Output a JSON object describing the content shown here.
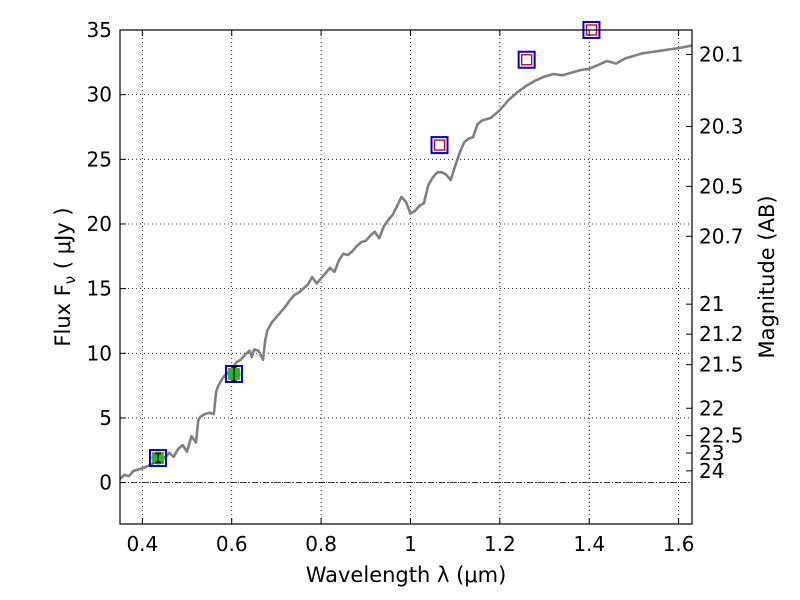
{
  "chart_data": {
    "type": "line",
    "xlabel": "Wavelength  λ (μm)",
    "ylabel": "Flux  F",
    "ylabel_subscript": "ν",
    "ylabel_unit": " ( μJy )",
    "ylabel_right": "Magnitude (AB)",
    "xlim": [
      0.35,
      1.63
    ],
    "ylim": [
      -3.2,
      35
    ],
    "grid": true,
    "x_ticks": [
      {
        "v": 0.4,
        "label": "0.4"
      },
      {
        "v": 0.6,
        "label": "0.6"
      },
      {
        "v": 0.8,
        "label": "0.8"
      },
      {
        "v": 1.0,
        "label": "1"
      },
      {
        "v": 1.2,
        "label": "1.2"
      },
      {
        "v": 1.4,
        "label": "1.4"
      },
      {
        "v": 1.6,
        "label": "1.6"
      }
    ],
    "y_ticks": [
      {
        "v": 0,
        "label": "0"
      },
      {
        "v": 5,
        "label": "5"
      },
      {
        "v": 10,
        "label": "10"
      },
      {
        "v": 15,
        "label": "15"
      },
      {
        "v": 20,
        "label": "20"
      },
      {
        "v": 25,
        "label": "25"
      },
      {
        "v": 30,
        "label": "30"
      },
      {
        "v": 35,
        "label": "35"
      }
    ],
    "magnitude_ticks": [
      {
        "flux": 33.11,
        "label": "20.1"
      },
      {
        "flux": 27.54,
        "label": "20.3"
      },
      {
        "flux": 22.91,
        "label": "20.5"
      },
      {
        "flux": 19.05,
        "label": "20.7"
      },
      {
        "flux": 13.8,
        "label": "21"
      },
      {
        "flux": 11.48,
        "label": "21.2"
      },
      {
        "flux": 9.12,
        "label": "21.5"
      },
      {
        "flux": 5.75,
        "label": "22"
      },
      {
        "flux": 3.63,
        "label": "22.5"
      },
      {
        "flux": 2.29,
        "label": "23"
      },
      {
        "flux": 0.91,
        "label": "24"
      }
    ],
    "zero_line": 0,
    "colors": {
      "model": "#808080",
      "square_outer": "#0000cc",
      "square_inner": "#cc0033",
      "detection": "#22bb22"
    },
    "model_spectrum": {
      "name": "",
      "x": [
        0.35,
        0.36,
        0.37,
        0.38,
        0.4,
        0.42,
        0.44,
        0.45,
        0.46,
        0.47,
        0.48,
        0.49,
        0.5,
        0.505,
        0.51,
        0.52,
        0.525,
        0.53,
        0.54,
        0.55,
        0.56,
        0.565,
        0.57,
        0.58,
        0.59,
        0.6,
        0.61,
        0.62,
        0.63,
        0.64,
        0.645,
        0.65,
        0.66,
        0.67,
        0.675,
        0.68,
        0.69,
        0.7,
        0.71,
        0.72,
        0.73,
        0.74,
        0.75,
        0.76,
        0.77,
        0.78,
        0.79,
        0.8,
        0.81,
        0.82,
        0.83,
        0.84,
        0.85,
        0.86,
        0.87,
        0.88,
        0.89,
        0.9,
        0.91,
        0.92,
        0.93,
        0.94,
        0.95,
        0.96,
        0.97,
        0.98,
        0.99,
        1.0,
        1.01,
        1.02,
        1.03,
        1.04,
        1.05,
        1.06,
        1.07,
        1.08,
        1.09,
        1.1,
        1.11,
        1.12,
        1.13,
        1.14,
        1.15,
        1.16,
        1.18,
        1.2,
        1.22,
        1.24,
        1.26,
        1.28,
        1.3,
        1.32,
        1.34,
        1.36,
        1.38,
        1.4,
        1.42,
        1.44,
        1.46,
        1.48,
        1.5,
        1.52,
        1.54,
        1.56,
        1.58,
        1.6,
        1.63
      ],
      "y": [
        0.3,
        0.6,
        0.5,
        0.9,
        1.1,
        1.4,
        1.8,
        1.9,
        2.3,
        2.0,
        2.6,
        2.9,
        2.4,
        3.0,
        3.6,
        3.1,
        4.8,
        5.1,
        5.3,
        5.4,
        5.3,
        7.0,
        7.5,
        8.1,
        8.5,
        8.7,
        9.3,
        9.5,
        9.9,
        10.2,
        9.7,
        10.3,
        10.2,
        9.5,
        11.0,
        11.8,
        12.4,
        12.8,
        13.2,
        13.6,
        14.1,
        14.5,
        14.7,
        15.0,
        15.3,
        15.9,
        15.4,
        15.8,
        16.2,
        16.6,
        16.3,
        17.2,
        17.7,
        17.6,
        17.9,
        18.3,
        18.6,
        18.7,
        19.1,
        19.4,
        18.9,
        19.8,
        20.3,
        20.7,
        21.4,
        22.1,
        21.7,
        20.8,
        21.0,
        21.4,
        21.6,
        23.0,
        23.6,
        24.0,
        24.0,
        23.8,
        23.4,
        24.5,
        25.5,
        26.3,
        26.6,
        26.7,
        27.7,
        28.0,
        28.2,
        28.8,
        29.6,
        30.2,
        30.7,
        31.1,
        31.4,
        31.6,
        31.5,
        31.7,
        31.9,
        32.0,
        32.3,
        32.6,
        32.4,
        32.8,
        33.0,
        33.2,
        33.3,
        33.4,
        33.5,
        33.6,
        33.8
      ]
    },
    "photometry_squares": [
      {
        "x": 0.435,
        "y": 1.9
      },
      {
        "x": 0.605,
        "y": 8.4
      },
      {
        "x": 1.065,
        "y": 26.1
      },
      {
        "x": 1.26,
        "y": 32.7
      },
      {
        "x": 1.405,
        "y": 35.0
      }
    ],
    "detections": [
      {
        "x": 0.435,
        "y": 1.9,
        "err": 0.35
      },
      {
        "x": 0.605,
        "y": 8.4,
        "err": 0.55
      }
    ]
  }
}
